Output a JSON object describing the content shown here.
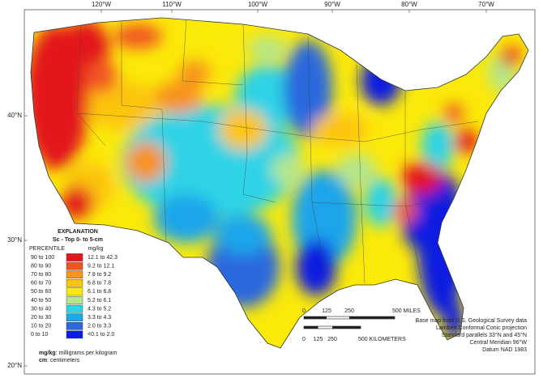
{
  "graticule": {
    "longitudes": [
      "120°W",
      "110°W",
      "100°W",
      "90°W",
      "80°W",
      "70°W"
    ],
    "latitudes": [
      "40°N",
      "30°N",
      "20°N"
    ]
  },
  "legend": {
    "title": "EXPLANATION",
    "subtitle": "Sc - Top 0- to 5-cm",
    "percentile_header": "PERCENTILE",
    "value_header": "mg/kg",
    "rows": [
      {
        "percentile": "90 to 100",
        "range": "12.1 to 42.3",
        "color": "#e3161b"
      },
      {
        "percentile": "80 to 90",
        "range": "9.2 to 12.1",
        "color": "#f25522"
      },
      {
        "percentile": "70 to 80",
        "range": "7.8 to 9.2",
        "color": "#f7931e"
      },
      {
        "percentile": "60 to 70",
        "range": "6.8 to 7.8",
        "color": "#fcc40f"
      },
      {
        "percentile": "50 to 60",
        "range": "6.1 to 6.8",
        "color": "#fbe90a"
      },
      {
        "percentile": "40 to 50",
        "range": "5.2 to 6.1",
        "color": "#b4e68a"
      },
      {
        "percentile": "30 to 40",
        "range": "4.3 to 5.2",
        "color": "#2fd3e6"
      },
      {
        "percentile": "20 to 30",
        "range": "3.3 to 4.3",
        "color": "#1ea5ea"
      },
      {
        "percentile": "10 to 20",
        "range": "2.0 to 3.3",
        "color": "#2c68de"
      },
      {
        "percentile": "0 to 10",
        "range": "<0.1 to 2.0",
        "color": "#0a1ee0"
      }
    ]
  },
  "notes": [
    {
      "term": "mg/kg",
      "definition": ": milligrams per kilogram"
    },
    {
      "term": "cm",
      "definition": ": centimeters"
    }
  ],
  "scale_bar": {
    "miles": [
      "0",
      "125",
      "250",
      "500 MILES"
    ],
    "kilometers": [
      "0",
      "125",
      "250",
      "500 KILOMETERS"
    ]
  },
  "credits": [
    "Base map from U.S. Geological Survey data",
    "Lambert Conformal Conic projection",
    "Standard parallels 33°N and 45°N",
    "Central Meridian 96°W",
    "Datum NAD 1983"
  ]
}
